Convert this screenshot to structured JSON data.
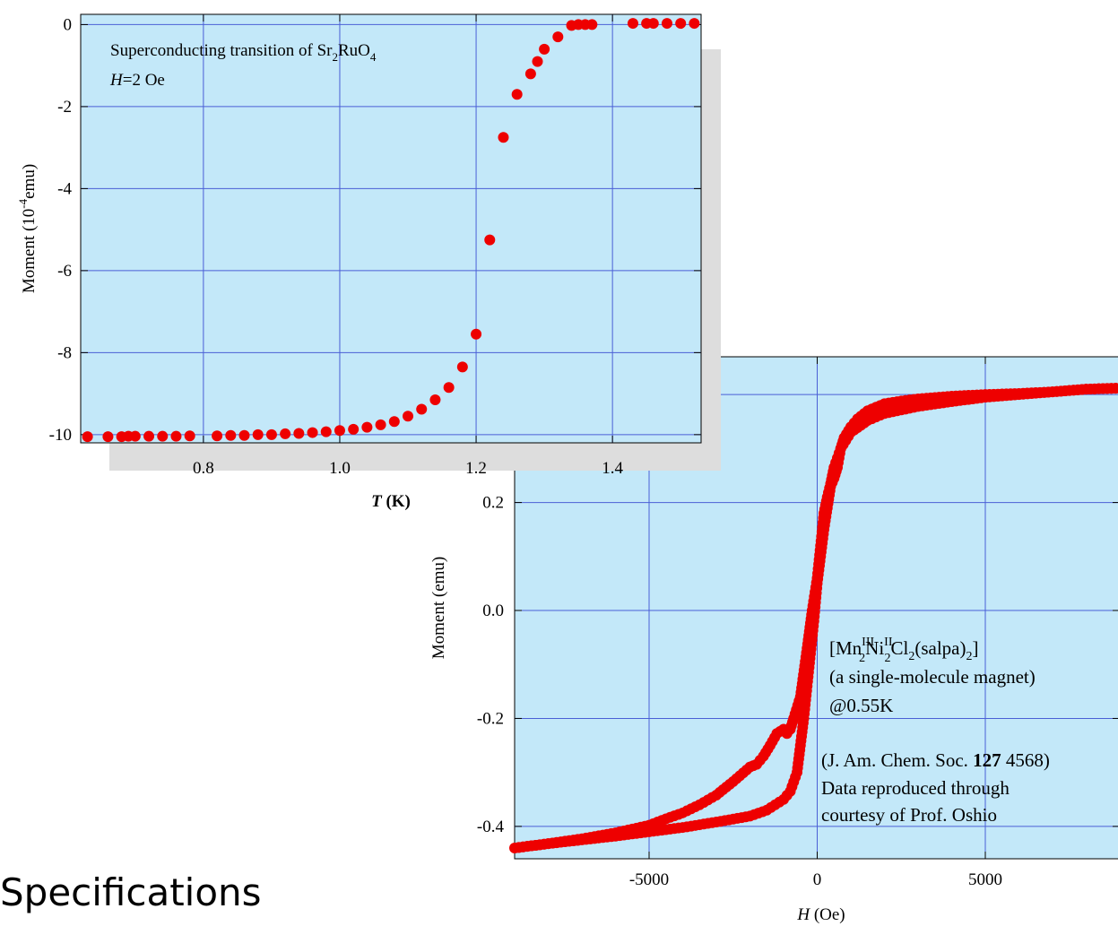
{
  "page": {
    "heading": "Specifications"
  },
  "colors": {
    "plot_background": "#c3e8f9",
    "grid": "#4a5fd6",
    "marker": "#ee0000",
    "shadow": "#dddddd"
  },
  "chart_data": [
    {
      "id": "hysteresis",
      "type": "scatter",
      "title": "",
      "xlabel_italic": "H",
      "xlabel_rest": " (Oe)",
      "ylabel": "Moment (emu)",
      "xlim": [
        -9000,
        9000
      ],
      "ylim": [
        -0.46,
        0.47
      ],
      "x_ticks": [
        {
          "value": -5000,
          "label": "-5000"
        },
        {
          "value": 0,
          "label": "0"
        },
        {
          "value": 5000,
          "label": "5000"
        }
      ],
      "y_ticks": [
        {
          "value": -0.4,
          "label": "-0.4"
        },
        {
          "value": -0.2,
          "label": "-0.2"
        },
        {
          "value": 0.0,
          "label": "0.0"
        },
        {
          "value": 0.2,
          "label": "0.2"
        }
      ],
      "grid_x": [
        -5000,
        0,
        5000
      ],
      "grid_y": [
        -0.4,
        -0.2,
        0.0,
        0.2,
        0.4
      ],
      "grid": true,
      "branches": [
        {
          "name": "",
          "points": [
            [
              -9000,
              -0.44
            ],
            [
              -8000,
              -0.432
            ],
            [
              -7000,
              -0.423
            ],
            [
              -6000,
              -0.412
            ],
            [
              -5000,
              -0.398
            ],
            [
              -4500,
              -0.386
            ],
            [
              -4000,
              -0.375
            ],
            [
              -3500,
              -0.36
            ],
            [
              -3000,
              -0.342
            ],
            [
              -2500,
              -0.317
            ],
            [
              -2000,
              -0.29
            ],
            [
              -1800,
              -0.285
            ],
            [
              -1600,
              -0.27
            ],
            [
              -1400,
              -0.25
            ],
            [
              -1200,
              -0.228
            ],
            [
              -1000,
              -0.22
            ],
            [
              -900,
              -0.228
            ],
            [
              -800,
              -0.22
            ],
            [
              -700,
              -0.2
            ],
            [
              -500,
              -0.16
            ],
            [
              -300,
              -0.07
            ],
            [
              -150,
              0.0
            ],
            [
              0,
              0.06
            ],
            [
              100,
              0.12
            ],
            [
              200,
              0.18
            ],
            [
              300,
              0.21
            ],
            [
              400,
              0.235
            ],
            [
              500,
              0.265
            ],
            [
              700,
              0.3
            ],
            [
              1000,
              0.33
            ],
            [
              1500,
              0.352
            ],
            [
              2000,
              0.365
            ],
            [
              3000,
              0.378
            ],
            [
              4000,
              0.387
            ],
            [
              5000,
              0.395
            ],
            [
              6000,
              0.4
            ],
            [
              7000,
              0.405
            ],
            [
              8000,
              0.41
            ],
            [
              9000,
              0.412
            ]
          ]
        },
        {
          "name": "",
          "points": [
            [
              9000,
              0.412
            ],
            [
              8000,
              0.41
            ],
            [
              7000,
              0.405
            ],
            [
              6000,
              0.402
            ],
            [
              5000,
              0.4
            ],
            [
              4000,
              0.397
            ],
            [
              3000,
              0.392
            ],
            [
              2500,
              0.388
            ],
            [
              2000,
              0.383
            ],
            [
              1500,
              0.37
            ],
            [
              1200,
              0.355
            ],
            [
              1000,
              0.34
            ],
            [
              800,
              0.32
            ],
            [
              700,
              0.3
            ],
            [
              600,
              0.265
            ],
            [
              500,
              0.245
            ],
            [
              400,
              0.23
            ],
            [
              200,
              0.15
            ],
            [
              0,
              0.05
            ],
            [
              -100,
              -0.02
            ],
            [
              -200,
              -0.08
            ],
            [
              -300,
              -0.14
            ],
            [
              -400,
              -0.2
            ],
            [
              -500,
              -0.25
            ],
            [
              -600,
              -0.3
            ],
            [
              -800,
              -0.335
            ],
            [
              -1000,
              -0.35
            ],
            [
              -1500,
              -0.37
            ],
            [
              -2000,
              -0.381
            ],
            [
              -3000,
              -0.392
            ],
            [
              -4000,
              -0.402
            ],
            [
              -5000,
              -0.41
            ],
            [
              -6000,
              -0.418
            ],
            [
              -7000,
              -0.425
            ],
            [
              -8000,
              -0.432
            ],
            [
              -9000,
              -0.44
            ]
          ]
        }
      ],
      "annotation": {
        "formula": {
          "open": "[Mn",
          "mn_sup": "III",
          "mn_sub": "2",
          "ni": "Ni",
          "ni_sup": "II",
          "ni_sub": "2",
          "cl": "Cl",
          "cl_sub": "2",
          "salpa": "(salpa)",
          "salpa_sub": "2",
          "close": "]"
        },
        "line2": "(a single-molecule magnet)",
        "line3": "@0.55K",
        "ref_prefix": "(J. Am. Chem. Soc. ",
        "ref_volume": "127",
        "ref_suffix": " 4568)",
        "line5": "Data reproduced through",
        "line6": "courtesy of Prof. Oshio"
      }
    },
    {
      "id": "transition",
      "type": "scatter",
      "title": "",
      "xlabel_italic": "T",
      "xlabel_rest": " (K)",
      "ylabel_pre": "Moment (10",
      "ylabel_sup": "-4",
      "ylabel_post": "emu)",
      "xlim": [
        0.62,
        1.53
      ],
      "ylim": [
        -10.2,
        0.25
      ],
      "x_ticks": [
        {
          "value": 0.8,
          "label": "0.8"
        },
        {
          "value": 1.0,
          "label": "1.0"
        },
        {
          "value": 1.2,
          "label": "1.2"
        },
        {
          "value": 1.4,
          "label": "1.4"
        }
      ],
      "y_ticks": [
        {
          "value": 0,
          "label": "0"
        },
        {
          "value": -2,
          "label": "-2"
        },
        {
          "value": -4,
          "label": "-4"
        },
        {
          "value": -6,
          "label": "-6"
        },
        {
          "value": -8,
          "label": "-8"
        },
        {
          "value": -10,
          "label": "-10"
        }
      ],
      "grid_x": [
        0.8,
        1.0,
        1.2,
        1.4
      ],
      "grid_y": [
        -10,
        -8,
        -6,
        -4,
        -2,
        0
      ],
      "grid": true,
      "series": [
        {
          "name": "",
          "x": [
            0.63,
            0.66,
            0.68,
            0.69,
            0.7,
            0.72,
            0.74,
            0.76,
            0.78,
            0.82,
            0.84,
            0.86,
            0.88,
            0.9,
            0.92,
            0.94,
            0.96,
            0.98,
            1.0,
            1.02,
            1.04,
            1.06,
            1.08,
            1.1,
            1.12,
            1.14,
            1.16,
            1.18,
            1.2,
            1.22,
            1.24,
            1.26,
            1.28,
            1.29,
            1.3,
            1.32,
            1.34,
            1.35,
            1.36,
            1.37,
            1.43,
            1.45,
            1.46,
            1.48,
            1.5,
            1.52
          ],
          "y": [
            -10.05,
            -10.05,
            -10.05,
            -10.04,
            -10.04,
            -10.04,
            -10.04,
            -10.04,
            -10.03,
            -10.03,
            -10.02,
            -10.02,
            -10.0,
            -10.0,
            -9.98,
            -9.97,
            -9.95,
            -9.93,
            -9.9,
            -9.87,
            -9.82,
            -9.76,
            -9.68,
            -9.55,
            -9.38,
            -9.15,
            -8.85,
            -8.35,
            -7.55,
            -5.25,
            -2.75,
            -1.7,
            -1.2,
            -0.9,
            -0.6,
            -0.3,
            -0.02,
            0.0,
            0.0,
            0.0,
            0.03,
            0.03,
            0.03,
            0.03,
            0.03,
            0.03
          ]
        }
      ],
      "annotation": {
        "line1_pre": "Superconducting transition of Sr",
        "line1_sub1": "2",
        "line1_mid": "RuO",
        "line1_sub2": "4",
        "line2_italic": "H",
        "line2_rest": "=2 Oe"
      }
    }
  ]
}
